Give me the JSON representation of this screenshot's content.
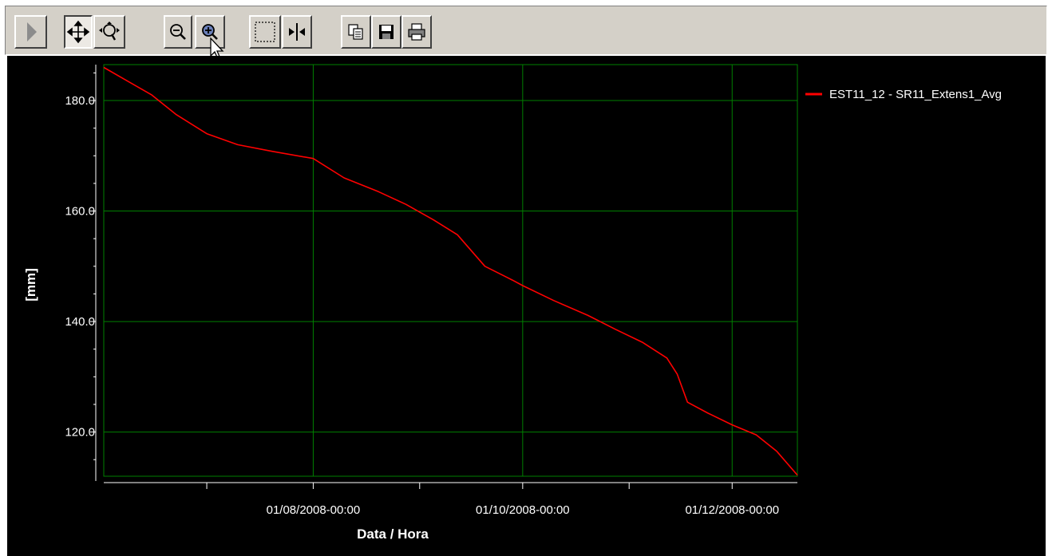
{
  "toolbar": {
    "buttons": [
      {
        "id": "play",
        "icon": "play-arrow-icon"
      },
      {
        "id": "pan",
        "icon": "pan-move-icon",
        "pressed": true
      },
      {
        "id": "zoom-fit",
        "icon": "zoom-fit-icon"
      },
      {
        "id": "zoom-out",
        "icon": "zoom-out-icon"
      },
      {
        "id": "zoom-in",
        "icon": "zoom-in-icon"
      },
      {
        "id": "select-region",
        "icon": "select-rectangle-icon"
      },
      {
        "id": "cursor-compare",
        "icon": "vertical-cursor-icon"
      },
      {
        "id": "copy",
        "icon": "copy-icon"
      },
      {
        "id": "save",
        "icon": "save-icon"
      },
      {
        "id": "print",
        "icon": "print-icon"
      }
    ]
  },
  "colors": {
    "background": "#000000",
    "grid": "#008000",
    "series": "#ff0000",
    "text": "#ffffff",
    "toolbar": "#d4d0c8"
  },
  "chart_data": {
    "type": "line",
    "title": "",
    "xlabel": "Data / Hora",
    "ylabel": "[mm]",
    "x_tick_labels": [
      "01/08/2008-00:00",
      "01/10/2008-00:00",
      "01/12/2008-00:00"
    ],
    "x_range": [
      "2008-06-01",
      "2008-12-20"
    ],
    "y_tick_labels": [
      "120.0",
      "140.0",
      "160.0",
      "180.0"
    ],
    "ylim": [
      112,
      186.5
    ],
    "grid": true,
    "legend_position": "right",
    "series": [
      {
        "name": "EST11_12 - SR11_Extens1_Avg",
        "x": [
          "2008-06-01",
          "2008-06-08",
          "2008-06-15",
          "2008-06-22",
          "2008-07-01",
          "2008-07-10",
          "2008-07-20",
          "2008-08-01",
          "2008-08-10",
          "2008-08-20",
          "2008-08-28",
          "2008-09-05",
          "2008-09-12",
          "2008-09-20",
          "2008-09-28",
          "2008-10-01",
          "2008-10-10",
          "2008-10-20",
          "2008-10-28",
          "2008-11-05",
          "2008-11-12",
          "2008-11-15",
          "2008-11-18",
          "2008-11-24",
          "2008-12-01",
          "2008-12-08",
          "2008-12-14",
          "2008-12-20"
        ],
        "y": [
          186,
          183.5,
          181,
          177.5,
          174,
          172,
          170.8,
          169.5,
          166,
          163.5,
          161.2,
          158.4,
          155.7,
          150,
          147.5,
          146.5,
          143.8,
          141.1,
          138.6,
          136.2,
          133.4,
          130.5,
          125.4,
          123.4,
          121.3,
          119.5,
          116.5,
          112.2
        ]
      }
    ]
  }
}
